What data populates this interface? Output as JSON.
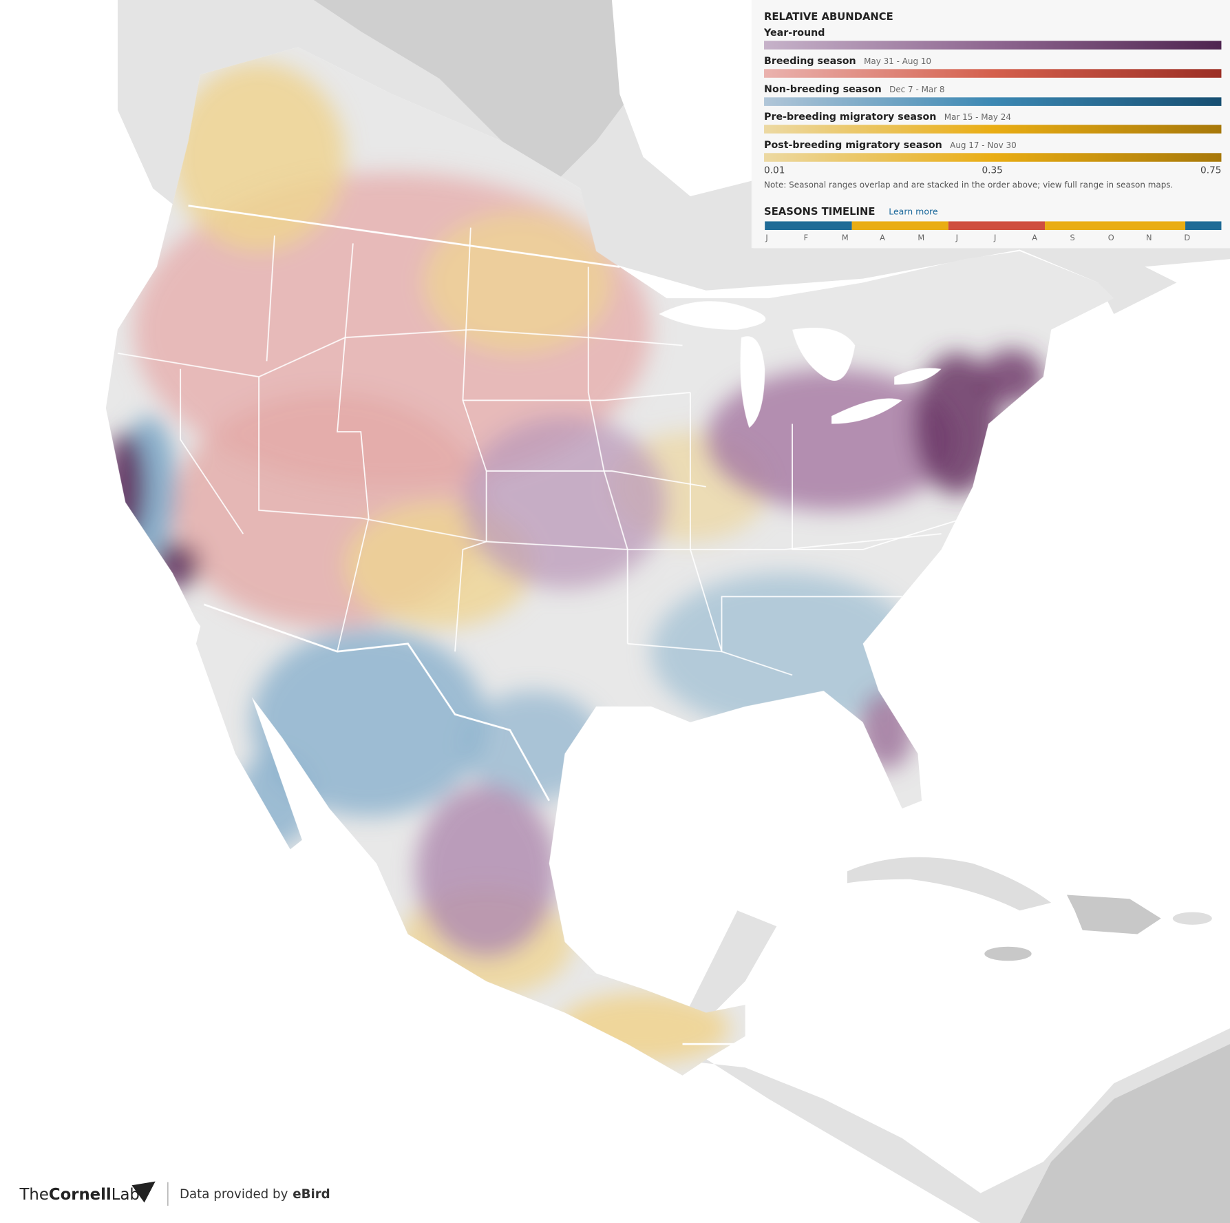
{
  "legend": {
    "title": "RELATIVE ABUNDANCE",
    "seasons": [
      {
        "name": "Year-round"
      },
      {
        "name": "Breeding season",
        "dates": "May 31 - Aug 10"
      },
      {
        "name": "Non-breeding season",
        "dates": "Dec 7 - Mar 8"
      },
      {
        "name": "Pre-breeding migratory season",
        "dates": "Mar 15 - May 24"
      },
      {
        "name": "Post-breeding migratory season",
        "dates": "Aug 17 - Nov 30"
      }
    ],
    "scale": [
      0.01,
      0.35,
      0.75
    ],
    "note": "Note: Seasonal ranges overlap and are stacked in the order above; view full range in season maps."
  },
  "timeline": {
    "title": "SEASONS TIMELINE",
    "link": "Learn more",
    "months": [
      "J",
      "F",
      "M",
      "A",
      "M",
      "J",
      "J",
      "A",
      "S",
      "O",
      "N",
      "D"
    ]
  },
  "footer": {
    "brand_prefix": "The",
    "brand_bold": "Cornell",
    "brand_suffix": "Lab",
    "credit": "Data provided by",
    "credit_bold": "eBird"
  }
}
